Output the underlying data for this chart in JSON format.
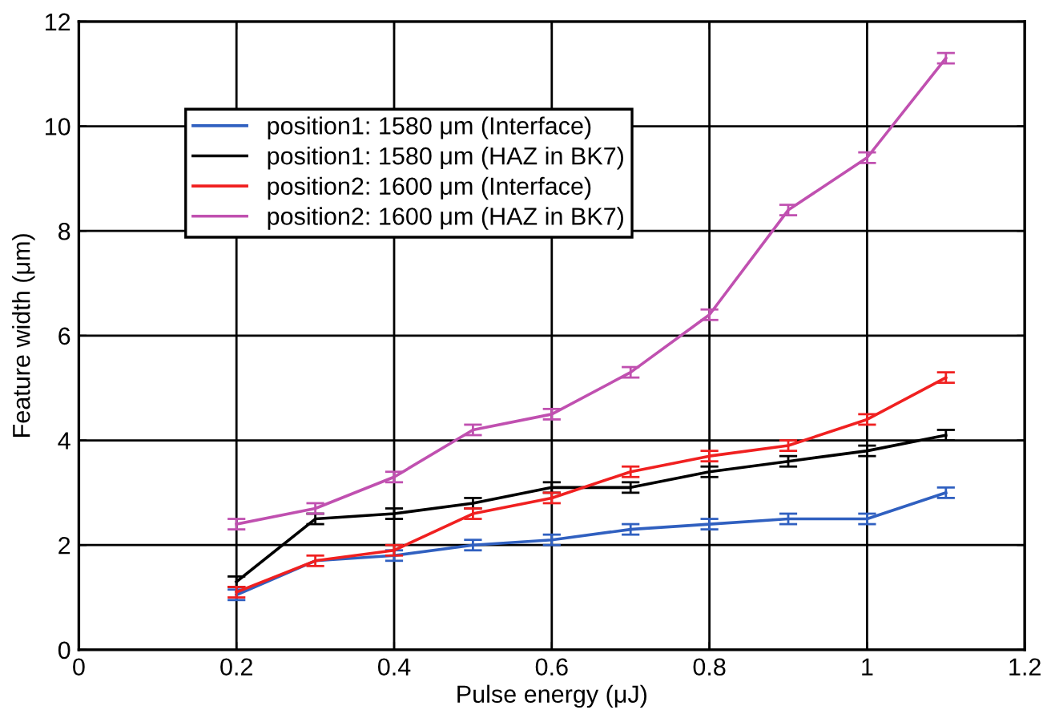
{
  "chart_data": {
    "type": "line",
    "xlabel": "Pulse energy (μJ)",
    "ylabel": "Feature width (μm)",
    "x": [
      0.2,
      0.3,
      0.4,
      0.5,
      0.6,
      0.7,
      0.8,
      0.9,
      1,
      1.1
    ],
    "series": [
      {
        "name": "position1: 1580 μm (Interface)",
        "color": "#3060c0",
        "values": [
          1.05,
          1.7,
          1.8,
          2.0,
          2.1,
          2.3,
          2.4,
          2.5,
          2.5,
          3.0
        ],
        "errors": [
          0.1,
          null,
          0.1,
          0.1,
          0.1,
          0.1,
          0.1,
          0.1,
          0.1,
          0.1
        ]
      },
      {
        "name": "position1: 1580 μm (HAZ in BK7)",
        "color": "#000000",
        "values": [
          1.3,
          2.5,
          2.6,
          2.8,
          3.1,
          3.1,
          3.4,
          3.6,
          3.8,
          4.1
        ],
        "errors": [
          0.1,
          0.1,
          0.1,
          0.1,
          0.1,
          0.1,
          0.1,
          0.1,
          0.1,
          0.1
        ]
      },
      {
        "name": "position2: 1600 μm (Interface)",
        "color": "#f02020",
        "values": [
          1.1,
          1.7,
          1.9,
          2.6,
          2.9,
          3.4,
          3.7,
          3.9,
          4.4,
          5.2
        ],
        "errors": [
          0.1,
          0.1,
          0.1,
          0.1,
          0.1,
          0.1,
          0.1,
          0.1,
          0.1,
          0.1
        ]
      },
      {
        "name": "position2: 1600 μm (HAZ in BK7)",
        "color": "#c050b0",
        "values": [
          2.4,
          2.7,
          3.3,
          4.2,
          4.5,
          5.3,
          6.4,
          8.4,
          9.4,
          11.3
        ],
        "errors": [
          0.1,
          0.1,
          0.1,
          0.1,
          0.1,
          0.1,
          0.1,
          0.1,
          0.1,
          0.1
        ]
      }
    ],
    "xlim": [
      0,
      1.2
    ],
    "xticks": [
      0,
      0.2,
      0.4,
      0.6,
      0.8,
      1,
      1.2
    ],
    "ylim": [
      0,
      12
    ],
    "yticks": [
      0,
      2,
      4,
      6,
      8,
      10,
      12
    ],
    "grid": true,
    "legend": "top left",
    "marker": "none",
    "line_style": "solid"
  }
}
